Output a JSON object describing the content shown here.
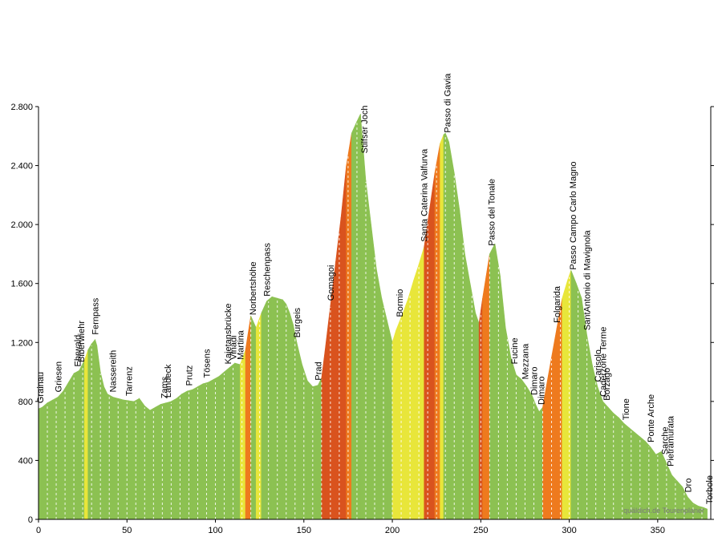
{
  "chart_data": {
    "type": "area",
    "title": "",
    "xlabel": "",
    "ylabel": "",
    "xlim": [
      0,
      380
    ],
    "ylim": [
      0,
      2800
    ],
    "x_ticks": [
      0,
      50,
      100,
      150,
      200,
      250,
      300,
      350
    ],
    "y_ticks": [
      0,
      400,
      800,
      1200,
      1600,
      2000,
      2400,
      2800
    ],
    "x_tick_labels": [
      "0",
      "50",
      "100",
      "150",
      "200",
      "250",
      "300",
      "350"
    ],
    "y_tick_labels": [
      "0",
      "400",
      "800",
      "1.200",
      "1.600",
      "2.000",
      "2.400",
      "2.800"
    ],
    "grid": false,
    "colors": {
      "flat": "#8cc152",
      "moderate": "#e8e63a",
      "steep": "#f5a623",
      "very_steep": "#ee7a1e",
      "extreme": "#d9531e",
      "km_marker": "#ffffff"
    },
    "series": [
      {
        "values_x": [
          0,
          2,
          5,
          8,
          11,
          14,
          17,
          20,
          23,
          26,
          28,
          30,
          32,
          33,
          35,
          37,
          39,
          42,
          45,
          48,
          51,
          54,
          57,
          60,
          63,
          66,
          69,
          72,
          75,
          78,
          81,
          84,
          87,
          90,
          93,
          96,
          99,
          102,
          105,
          108,
          111,
          114,
          117,
          120,
          123,
          126,
          129,
          132,
          135,
          138,
          140,
          142,
          144,
          146,
          149,
          152,
          155,
          158,
          160,
          162,
          165,
          168,
          171,
          174,
          177,
          180,
          182,
          183,
          185,
          188,
          191,
          194,
          197,
          200,
          202,
          204,
          206,
          209,
          212,
          215,
          218,
          221,
          224,
          227,
          229,
          230,
          232,
          235,
          238,
          241,
          244,
          247,
          249,
          251,
          253,
          255,
          258,
          261,
          264,
          267,
          270,
          273,
          276,
          279,
          281,
          283,
          285,
          287,
          290,
          293,
          296,
          299,
          301,
          304,
          307,
          310,
          313,
          316,
          319,
          322,
          325,
          328,
          331,
          334,
          337,
          340,
          343,
          346,
          349,
          352,
          355,
          358,
          361,
          364,
          367,
          370,
          373,
          376,
          378
        ],
        "values_y": [
          750,
          760,
          790,
          810,
          830,
          870,
          930,
          990,
          1010,
          1080,
          1150,
          1190,
          1220,
          1180,
          1000,
          900,
          850,
          830,
          820,
          810,
          805,
          800,
          820,
          770,
          740,
          760,
          780,
          790,
          800,
          820,
          850,
          870,
          880,
          900,
          920,
          930,
          950,
          970,
          1000,
          1030,
          1060,
          1050,
          1150,
          1380,
          1300,
          1400,
          1480,
          1510,
          1500,
          1490,
          1460,
          1400,
          1320,
          1200,
          1050,
          940,
          900,
          910,
          960,
          1150,
          1450,
          1750,
          2050,
          2400,
          2620,
          2700,
          2750,
          2600,
          2300,
          2000,
          1700,
          1500,
          1350,
          1200,
          1280,
          1340,
          1400,
          1500,
          1620,
          1730,
          1850,
          2100,
          2350,
          2550,
          2610,
          2620,
          2560,
          2350,
          2100,
          1800,
          1600,
          1400,
          1330,
          1500,
          1650,
          1800,
          1870,
          1650,
          1300,
          1100,
          980,
          950,
          900,
          840,
          780,
          730,
          760,
          900,
          1100,
          1300,
          1500,
          1620,
          1690,
          1600,
          1500,
          1250,
          1050,
          900,
          800,
          760,
          720,
          690,
          650,
          620,
          590,
          560,
          530,
          490,
          440,
          460,
          380,
          300,
          260,
          220,
          150,
          110,
          90,
          80,
          70
        ]
      }
    ],
    "annotations": [
      {
        "x": 1,
        "label": "Grainau"
      },
      {
        "x": 11,
        "label": "Griesen"
      },
      {
        "x": 22,
        "label": "Ehrwald"
      },
      {
        "x": 24,
        "label": "Biberwiehr"
      },
      {
        "x": 32,
        "label": "Fernpass"
      },
      {
        "x": 42,
        "label": "Nassereith"
      },
      {
        "x": 51,
        "label": "Tarrenz"
      },
      {
        "x": 71,
        "label": "Zams"
      },
      {
        "x": 73,
        "label": "Landeck"
      },
      {
        "x": 85,
        "label": "Prutz"
      },
      {
        "x": 95,
        "label": "Tösens"
      },
      {
        "x": 107,
        "label": "Kajetansbrücke"
      },
      {
        "x": 110,
        "label": "Vinadi"
      },
      {
        "x": 114,
        "label": "Martina"
      },
      {
        "x": 121,
        "label": "Norbertshöhe"
      },
      {
        "x": 129,
        "label": "Reschenpass"
      },
      {
        "x": 146,
        "label": "Burgeis"
      },
      {
        "x": 158,
        "label": "Prad"
      },
      {
        "x": 165,
        "label": "Gomagoi"
      },
      {
        "x": 184,
        "label": "Stilfser Joch"
      },
      {
        "x": 204,
        "label": "Bormio"
      },
      {
        "x": 218,
        "label": "Santa Caterina Valfurva"
      },
      {
        "x": 231,
        "label": "Passo di Gavia"
      },
      {
        "x": 256,
        "label": "Passo del Tonale"
      },
      {
        "x": 269,
        "label": "Fucine"
      },
      {
        "x": 275,
        "label": "Mezzana"
      },
      {
        "x": 280,
        "label": "Dimaro"
      },
      {
        "x": 284,
        "label": "Dimaro"
      },
      {
        "x": 293,
        "label": "Folgarida"
      },
      {
        "x": 302,
        "label": "Passo Campo Carlo Magno"
      },
      {
        "x": 310,
        "label": "SantAntonio di Mavignola"
      },
      {
        "x": 316,
        "label": "Carisolo"
      },
      {
        "x": 319,
        "label": "Caderzone Terme"
      },
      {
        "x": 321,
        "label": "Borzago"
      },
      {
        "x": 332,
        "label": "Tione"
      },
      {
        "x": 346,
        "label": "Ponte Arche"
      },
      {
        "x": 354,
        "label": "Sarche"
      },
      {
        "x": 357,
        "label": "Pietramurata"
      },
      {
        "x": 367,
        "label": "Dro"
      },
      {
        "x": 380,
        "label": "Torbole"
      }
    ],
    "watermark": "quäldich.de Tourenplaner"
  }
}
